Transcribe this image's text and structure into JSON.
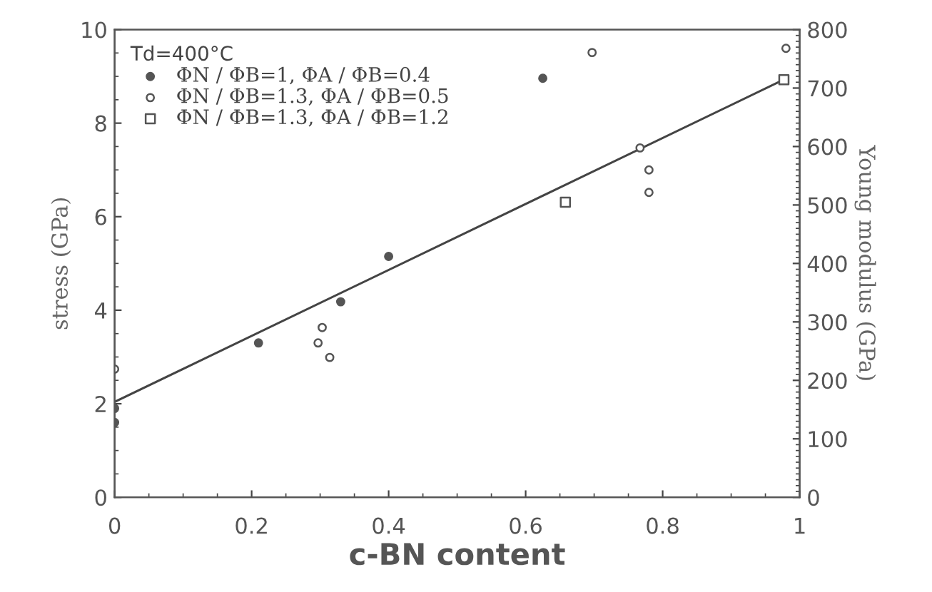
{
  "chart_data": {
    "type": "scatter",
    "xlabel": "c-BN content",
    "ylabel": "stress (GPa)",
    "y2label": "Young modulus (GPa)",
    "legend_title": "Td=400°C",
    "legend": "top left",
    "grid": false,
    "xlim": [
      0,
      1
    ],
    "xticks": [
      0,
      0.2,
      0.4,
      0.6,
      0.8,
      1
    ],
    "ylim": [
      0,
      10
    ],
    "yticks": [
      0,
      2,
      4,
      6,
      8,
      10
    ],
    "y2lim": [
      0,
      800
    ],
    "y2ticks": [
      0,
      100,
      200,
      300,
      400,
      500,
      600,
      700,
      800
    ],
    "series": [
      {
        "name": "ΦN / ΦB=1, ΦA / ΦB=0.4",
        "color": "#555555",
        "marker": "circle",
        "x": [
          0,
          0,
          0.21,
          0.33,
          0.4,
          0.625
        ],
        "values": [
          1.9,
          1.6,
          3.3,
          4.18,
          5.15,
          8.96
        ]
      },
      {
        "name": "ΦN / ΦB=1.3, ΦA / ΦB=0.5",
        "color": "#555555",
        "marker": "circle",
        "x": [
          0,
          0.297,
          0.303,
          0.314,
          0.697,
          0.767,
          0.78,
          0.78,
          0.98
        ],
        "values": [
          2.74,
          3.3,
          3.63,
          2.99,
          9.51,
          7.47,
          7.0,
          6.52,
          9.6
        ]
      },
      {
        "name": "ΦN / ΦB=1.3, ΦA / ΦB=1.2",
        "color": "#555555",
        "marker": "square",
        "x": [
          0.658,
          0.977
        ],
        "values": [
          6.31,
          8.93
        ]
      },
      {
        "type": "line",
        "color": "#444444",
        "x": [
          0,
          0.977
        ],
        "values": [
          2.04,
          8.93
        ]
      }
    ]
  }
}
